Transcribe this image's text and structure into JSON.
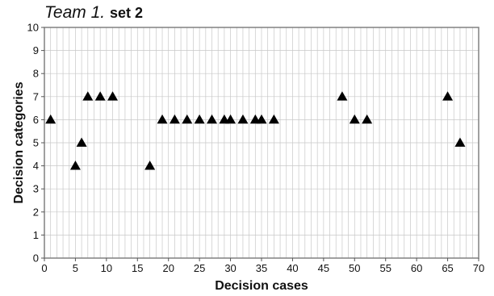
{
  "title_part1": "Team 1.",
  "title_part2": "set 2",
  "chart_data": {
    "type": "scatter",
    "title": "Team 1. set 2",
    "xlabel": "Decision cases",
    "ylabel": "Decision categories",
    "xlim": [
      0,
      70
    ],
    "ylim": [
      0,
      10
    ],
    "grid": true,
    "x_ticks": [
      "0",
      "5",
      "10",
      "15",
      "20",
      "25",
      "30",
      "35",
      "40",
      "45",
      "50",
      "55",
      "60",
      "65",
      "70"
    ],
    "y_ticks": [
      "0",
      "1",
      "2",
      "3",
      "4",
      "5",
      "6",
      "7",
      "8",
      "9",
      "10"
    ],
    "marker": "triangle",
    "marker_color": "#000000",
    "series": [
      {
        "points": [
          [
            1,
            6
          ],
          [
            5,
            4
          ],
          [
            6,
            5
          ],
          [
            7,
            7
          ],
          [
            9,
            7
          ],
          [
            11,
            7
          ],
          [
            17,
            4
          ],
          [
            19,
            6
          ],
          [
            21,
            6
          ],
          [
            23,
            6
          ],
          [
            25,
            6
          ],
          [
            27,
            6
          ],
          [
            29,
            6
          ],
          [
            30,
            6
          ],
          [
            32,
            6
          ],
          [
            34,
            6
          ],
          [
            35,
            6
          ],
          [
            37,
            6
          ],
          [
            48,
            7
          ],
          [
            50,
            6
          ],
          [
            52,
            6
          ],
          [
            65,
            7
          ],
          [
            67,
            5
          ]
        ]
      }
    ]
  }
}
